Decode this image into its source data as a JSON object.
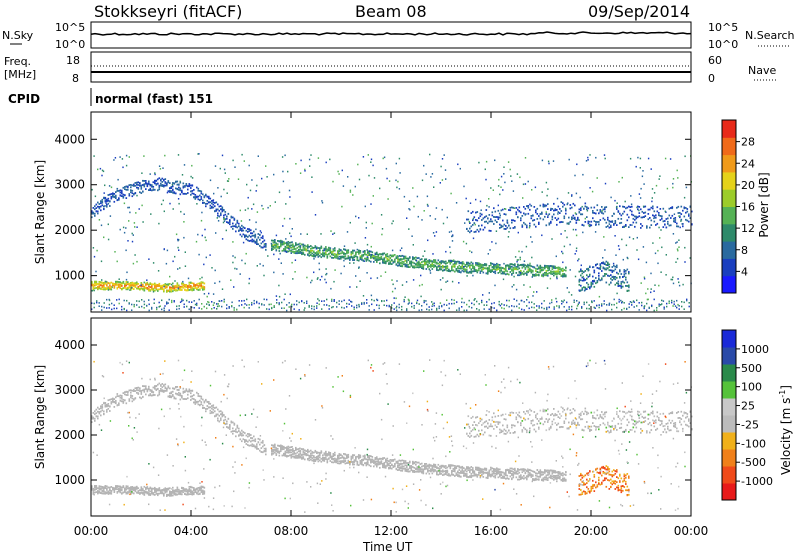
{
  "header": {
    "station": "Stokkseyri (fitACF)",
    "beam": "Beam 08",
    "date": "09/Sep/2014"
  },
  "top_panels": {
    "nsky_label": "N.Sky",
    "nsearch_label": "N.Search",
    "nave_label": "Nave",
    "freq_label_line1": "Freq.",
    "freq_label_line2": "[MHz]",
    "cpid_label": "CPID",
    "cpid_value": "normal (fast) 151",
    "noise_left_ticks": [
      "10^5",
      "10^0"
    ],
    "noise_right_ticks": [
      "10^5",
      "10^0"
    ],
    "freq_ticks": [
      "18",
      "8"
    ],
    "nave_ticks": [
      "60",
      "0"
    ]
  },
  "colors": {
    "power_scale": [
      "#1a1aff",
      "#1a3fbf",
      "#2a6a9f",
      "#2e8a6a",
      "#55b255",
      "#9ccc2a",
      "#e5d21a",
      "#f09a1a",
      "#f06a1a",
      "#e82a1a"
    ],
    "velocity_scale": [
      "#e81a1a",
      "#f04a1a",
      "#f0801a",
      "#f0b01a",
      "#bcbcbc",
      "#c8c8c8",
      "#55c23a",
      "#2a8a4a",
      "#2a4aa8",
      "#1a2ad8"
    ],
    "ground_scatter": "#b4b4b4"
  },
  "chart_data": [
    {
      "type": "heatmap",
      "title": "",
      "xlabel": "Time UT",
      "ylabel": "Slant Range [km]",
      "x_ticks": [
        "00:00",
        "04:00",
        "08:00",
        "12:00",
        "16:00",
        "20:00",
        "00:00"
      ],
      "xlim_hours": [
        0,
        24
      ],
      "ylim": [
        200,
        4600
      ],
      "y_ticks": [
        1000,
        2000,
        3000,
        4000
      ],
      "colorbar": {
        "label": "Power [dB]",
        "ticks": [
          "4",
          "8",
          "12",
          "16",
          "20",
          "24",
          "28"
        ],
        "range": [
          0,
          30
        ]
      },
      "features": [
        {
          "name": "main-band",
          "t": [
            7.2,
            9,
            11,
            13,
            15,
            17,
            19
          ],
          "range_km": [
            1700,
            1550,
            1450,
            1300,
            1200,
            1150,
            1100
          ],
          "power_db": 14
        },
        {
          "name": "early-arc",
          "t": [
            0,
            1,
            2.5,
            4,
            5,
            6,
            7
          ],
          "range_km": [
            2400,
            2800,
            3050,
            2900,
            2500,
            2000,
            1700
          ],
          "power_db": 6
        },
        {
          "name": "low-strong",
          "t": [
            0,
            1.5,
            3,
            4.5
          ],
          "range_km": [
            800,
            800,
            750,
            800
          ],
          "power_db": 24
        },
        {
          "name": "high-late",
          "t": [
            15,
            17,
            19,
            21,
            23,
            24
          ],
          "range_km": [
            2200,
            2300,
            2400,
            2300,
            2300,
            2300
          ],
          "power_db": 6
        }
      ]
    },
    {
      "type": "heatmap",
      "title": "",
      "xlabel": "Time UT",
      "ylabel": "Slant Range [km]",
      "x_ticks": [
        "00:00",
        "04:00",
        "08:00",
        "12:00",
        "16:00",
        "20:00",
        "00:00"
      ],
      "xlim_hours": [
        0,
        24
      ],
      "ylim": [
        200,
        4600
      ],
      "y_ticks": [
        1000,
        2000,
        3000,
        4000
      ],
      "colorbar": {
        "label": "Velocity [m s^-1]",
        "ticks": [
          "1000",
          "500",
          "100",
          "25",
          "-25",
          "-100",
          "-500",
          "-1000"
        ],
        "range": [
          -1200,
          1200
        ]
      },
      "features": [
        {
          "name": "ground-scatter-band",
          "t": [
            7.2,
            9,
            11,
            13,
            15,
            17,
            19
          ],
          "range_km": [
            1700,
            1550,
            1450,
            1300,
            1200,
            1150,
            1100
          ],
          "velocity": 0
        },
        {
          "name": "ground-scatter-arc",
          "t": [
            0,
            1,
            2.5,
            4,
            5,
            6,
            7
          ],
          "range_km": [
            2400,
            2800,
            3050,
            2900,
            2500,
            2000,
            1700
          ],
          "velocity": 0
        },
        {
          "name": "negative-burst",
          "t": [
            19.5,
            20.5,
            21.5
          ],
          "range_km": [
            900,
            1100,
            900
          ],
          "velocity": -600
        }
      ]
    }
  ],
  "axes_text": {
    "ylabel": "Slant Range [km]",
    "xlabel": "Time UT",
    "power_label": "Power [dB]",
    "velocity_label": "Velocity [m s",
    "velocity_sup": "-1",
    "velocity_close": "]"
  }
}
